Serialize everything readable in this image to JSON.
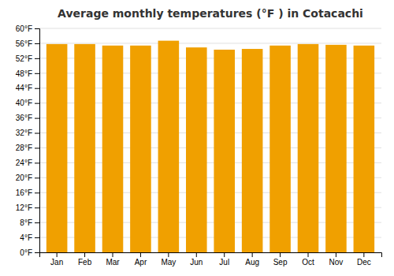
{
  "chart_data": {
    "type": "bar",
    "title": "Average monthly temperatures (°F ) in Cotacachi",
    "categories": [
      "Jan",
      "Feb",
      "Mar",
      "Apr",
      "May",
      "Jun",
      "Jul",
      "Aug",
      "Sep",
      "Oct",
      "Nov",
      "Dec"
    ],
    "values": [
      55.8,
      55.8,
      55.4,
      55.4,
      56.7,
      54.9,
      54.3,
      54.5,
      55.4,
      55.8,
      55.6,
      55.4
    ],
    "color": "#F0A000",
    "ylim": [
      0,
      60
    ],
    "yticks": [
      {
        "value": 0,
        "label": "0°F"
      },
      {
        "value": 4,
        "label": "4°F"
      },
      {
        "value": 8,
        "label": "8°F"
      },
      {
        "value": 12,
        "label": "12°F"
      },
      {
        "value": 16,
        "label": "16°F"
      },
      {
        "value": 20,
        "label": "20°F"
      },
      {
        "value": 24,
        "label": "24°F"
      },
      {
        "value": 28,
        "label": "28°F"
      },
      {
        "value": 32,
        "label": "32°F"
      },
      {
        "value": 36,
        "label": "36°F"
      },
      {
        "value": 40,
        "label": "40°F"
      },
      {
        "value": 44,
        "label": "44°F"
      },
      {
        "value": 48,
        "label": "48°F"
      },
      {
        "value": 52,
        "label": "52°F"
      },
      {
        "value": 56,
        "label": "56°F"
      },
      {
        "value": 60,
        "label": "60°F"
      }
    ],
    "grid": true
  }
}
